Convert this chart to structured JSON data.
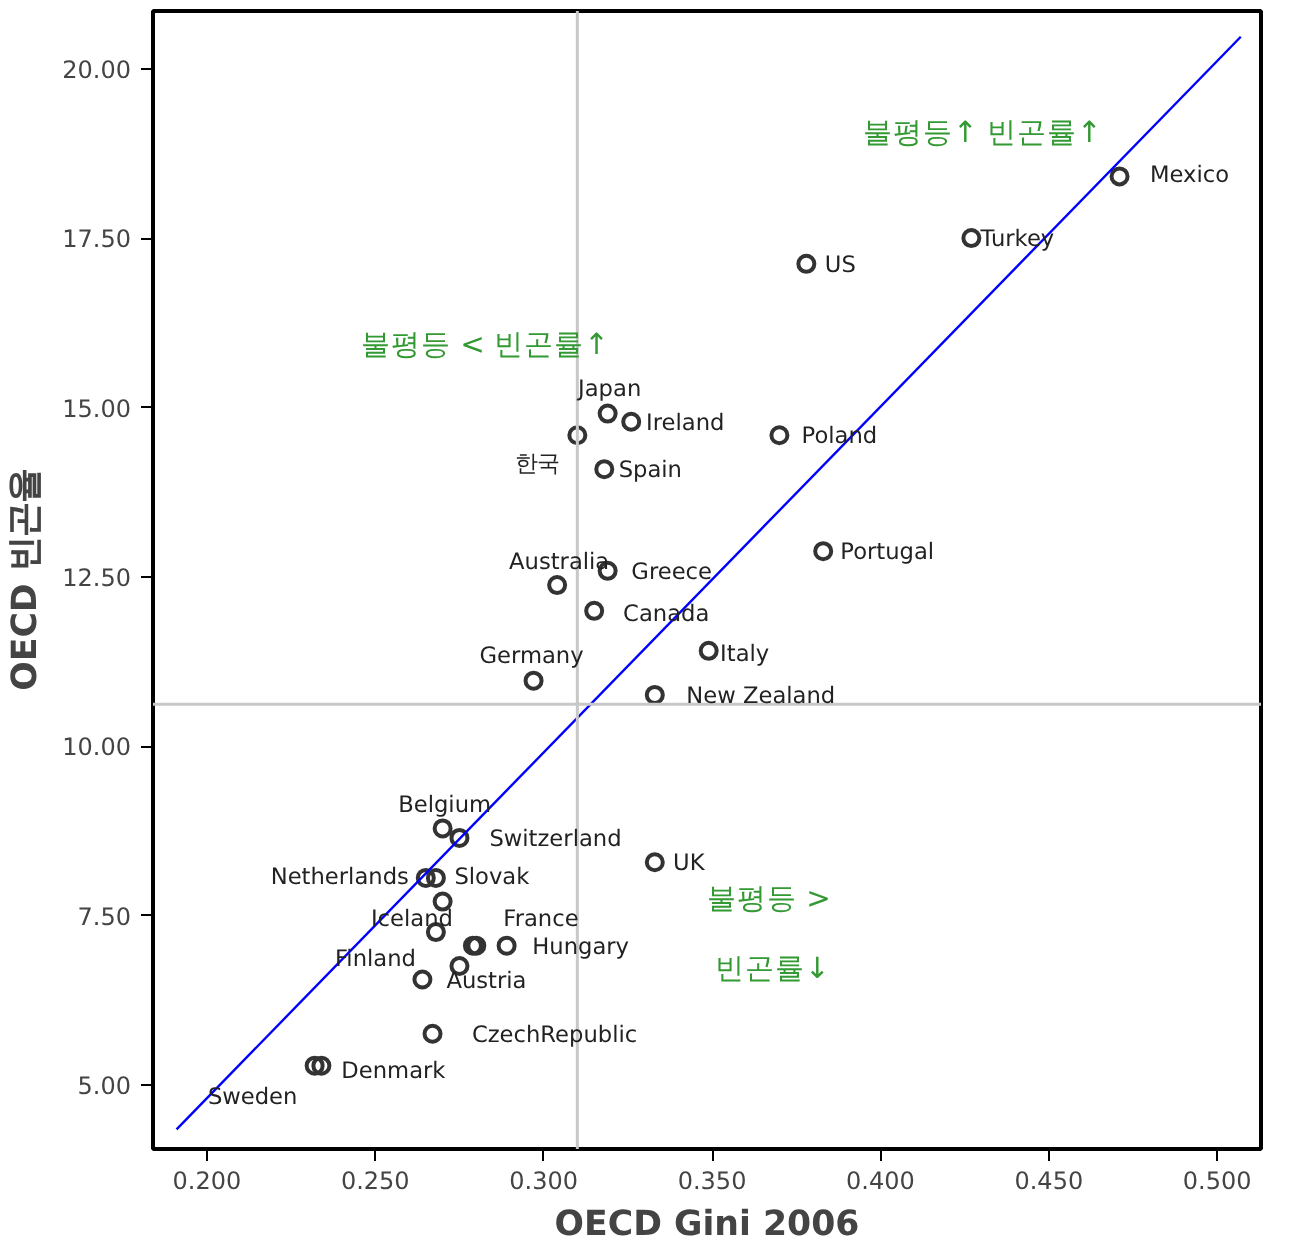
{
  "chart_data": {
    "type": "scatter",
    "xlabel": "OECD Gini 2006",
    "ylabel": "OECD 빈곤율",
    "xlim": [
      0.184,
      0.513
    ],
    "ylim": [
      4.06,
      20.85
    ],
    "xticks": [
      {
        "value": 0.2,
        "label": "0.200"
      },
      {
        "value": 0.25,
        "label": "0.250"
      },
      {
        "value": 0.3,
        "label": "0.300"
      },
      {
        "value": 0.35,
        "label": "0.350"
      },
      {
        "value": 0.4,
        "label": "0.400"
      },
      {
        "value": 0.45,
        "label": "0.450"
      },
      {
        "value": 0.5,
        "label": "0.500"
      }
    ],
    "yticks": [
      {
        "value": 5,
        "label": "5.00"
      },
      {
        "value": 7.5,
        "label": "7.50"
      },
      {
        "value": 10,
        "label": "10.00"
      },
      {
        "value": 12.5,
        "label": "12.50"
      },
      {
        "value": 15,
        "label": "15.00"
      },
      {
        "value": 17.5,
        "label": "17.50"
      },
      {
        "value": 20,
        "label": "20.00"
      }
    ],
    "grid": false,
    "marker": "circle",
    "series": [
      {
        "color": "#333333",
        "x": [
          0.471,
          0.427,
          0.378,
          0.37,
          0.383,
          0.319,
          0.326,
          0.31,
          0.318,
          0.304,
          0.319,
          0.315,
          0.297,
          0.349,
          0.333,
          0.27,
          0.275,
          0.265,
          0.268,
          0.27,
          0.268,
          0.279,
          0.28,
          0.289,
          0.275,
          0.264,
          0.267,
          0.232,
          0.234,
          0.333
        ],
        "values": [
          18.41,
          17.5,
          17.12,
          14.59,
          12.88,
          14.91,
          14.79,
          14.59,
          14.09,
          12.38,
          12.59,
          12.0,
          10.97,
          11.41,
          10.76,
          8.79,
          8.65,
          8.06,
          8.06,
          7.71,
          7.26,
          7.06,
          7.06,
          7.06,
          6.76,
          6.56,
          5.76,
          5.29,
          5.29,
          8.29
        ]
      },
      {
        "type": "line",
        "color": "#0000ff",
        "marker": "none",
        "x": [
          0.191,
          0.507
        ],
        "values": [
          4.35,
          20.47
        ]
      }
    ],
    "ref_lines": [
      {
        "axis": "x",
        "value": 0.31,
        "color": "#c8c8c8"
      },
      {
        "axis": "y",
        "value": 10.62,
        "color": "#c8c8c8"
      }
    ],
    "annotations": [
      {
        "text": "Mexico",
        "x": 0.471,
        "y": 18.41
      },
      {
        "text": "Turkey",
        "x": 0.427,
        "y": 17.5
      },
      {
        "text": "US",
        "x": 0.378,
        "y": 17.12
      },
      {
        "text": "Poland",
        "x": 0.37,
        "y": 14.59
      },
      {
        "text": "Portugal",
        "x": 0.383,
        "y": 12.88
      },
      {
        "text": "Japan",
        "x": 0.319,
        "y": 14.91
      },
      {
        "text": "Ireland",
        "x": 0.326,
        "y": 14.79
      },
      {
        "text": "한국",
        "x": 0.31,
        "y": 14.59
      },
      {
        "text": "Spain",
        "x": 0.318,
        "y": 14.09
      },
      {
        "text": "Australia",
        "x": 0.304,
        "y": 12.38
      },
      {
        "text": "Greece",
        "x": 0.319,
        "y": 12.59
      },
      {
        "text": "Canada",
        "x": 0.315,
        "y": 12.0
      },
      {
        "text": "Germany",
        "x": 0.297,
        "y": 10.97
      },
      {
        "text": "Italy",
        "x": 0.349,
        "y": 11.41
      },
      {
        "text": "New Zealand",
        "x": 0.333,
        "y": 10.76
      },
      {
        "text": "Belgium",
        "x": 0.27,
        "y": 8.79
      },
      {
        "text": "Switzerland",
        "x": 0.275,
        "y": 8.65
      },
      {
        "text": "Netherlands",
        "x": 0.265,
        "y": 8.06
      },
      {
        "text": "Slovak",
        "x": 0.268,
        "y": 8.06
      },
      {
        "text": "Iceland",
        "x": 0.268,
        "y": 7.26
      },
      {
        "text": "France",
        "x": 0.279,
        "y": 7.06
      },
      {
        "text": "Finland",
        "x": 0.275,
        "y": 6.76
      },
      {
        "text": "Hungary",
        "x": 0.289,
        "y": 7.06
      },
      {
        "text": "Austria",
        "x": 0.264,
        "y": 6.56
      },
      {
        "text": "CzechRepublic",
        "x": 0.267,
        "y": 5.76
      },
      {
        "text": "Denmark",
        "x": 0.234,
        "y": 5.29
      },
      {
        "text": "Sweden",
        "x": 0.232,
        "y": 5.29
      },
      {
        "text": "UK",
        "x": 0.333,
        "y": 8.29
      },
      "불평등↑ 빈곤률↑",
      "불평등 < 빈곤률↑",
      "불평등 >",
      "빈곤률↓"
    ]
  }
}
